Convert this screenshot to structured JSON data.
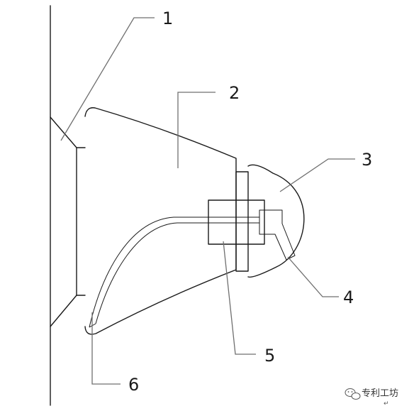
{
  "callouts": [
    "1",
    "2",
    "3",
    "4",
    "5",
    "6"
  ],
  "watermark": {
    "text": "专利工坊",
    "mark": "↵"
  }
}
